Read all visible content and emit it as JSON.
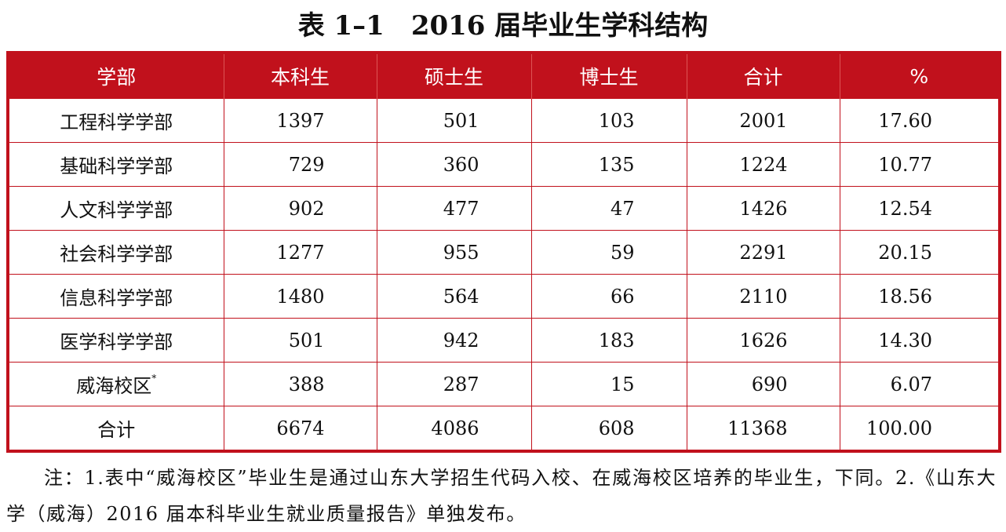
{
  "title": "表 1–1　2016 届毕业生学科结构",
  "table": {
    "header": [
      "学部",
      "本科生",
      "硕士生",
      "博士生",
      "合计",
      "%"
    ],
    "rows": [
      [
        {
          "text": "工程科学学部"
        },
        "1397",
        "501",
        "103",
        "2001",
        "17.60"
      ],
      [
        {
          "text": "基础科学学部"
        },
        "729",
        "360",
        "135",
        "1224",
        "10.77"
      ],
      [
        {
          "text": "人文科学学部"
        },
        "902",
        "477",
        "47",
        "1426",
        "12.54"
      ],
      [
        {
          "text": "社会科学学部"
        },
        "1277",
        "955",
        "59",
        "2291",
        "20.15"
      ],
      [
        {
          "text": "信息科学学部"
        },
        "1480",
        "564",
        "66",
        "2110",
        "18.56"
      ],
      [
        {
          "text": "医学科学学部"
        },
        "501",
        "942",
        "183",
        "1626",
        "14.30"
      ],
      [
        {
          "text": "威海校区",
          "sup": "*"
        },
        "388",
        "287",
        "15",
        "690",
        "6.07"
      ],
      [
        {
          "text": "合计"
        },
        "6674",
        "4086",
        "608",
        "11368",
        "100.00"
      ]
    ]
  },
  "note": "注：1.表中“威海校区”毕业生是通过山东大学招生代码入校、在威海校区培养的毕业生，下同。2.《山东大学（威海）2016 届本科毕业生就业质量报告》单独发布。"
}
